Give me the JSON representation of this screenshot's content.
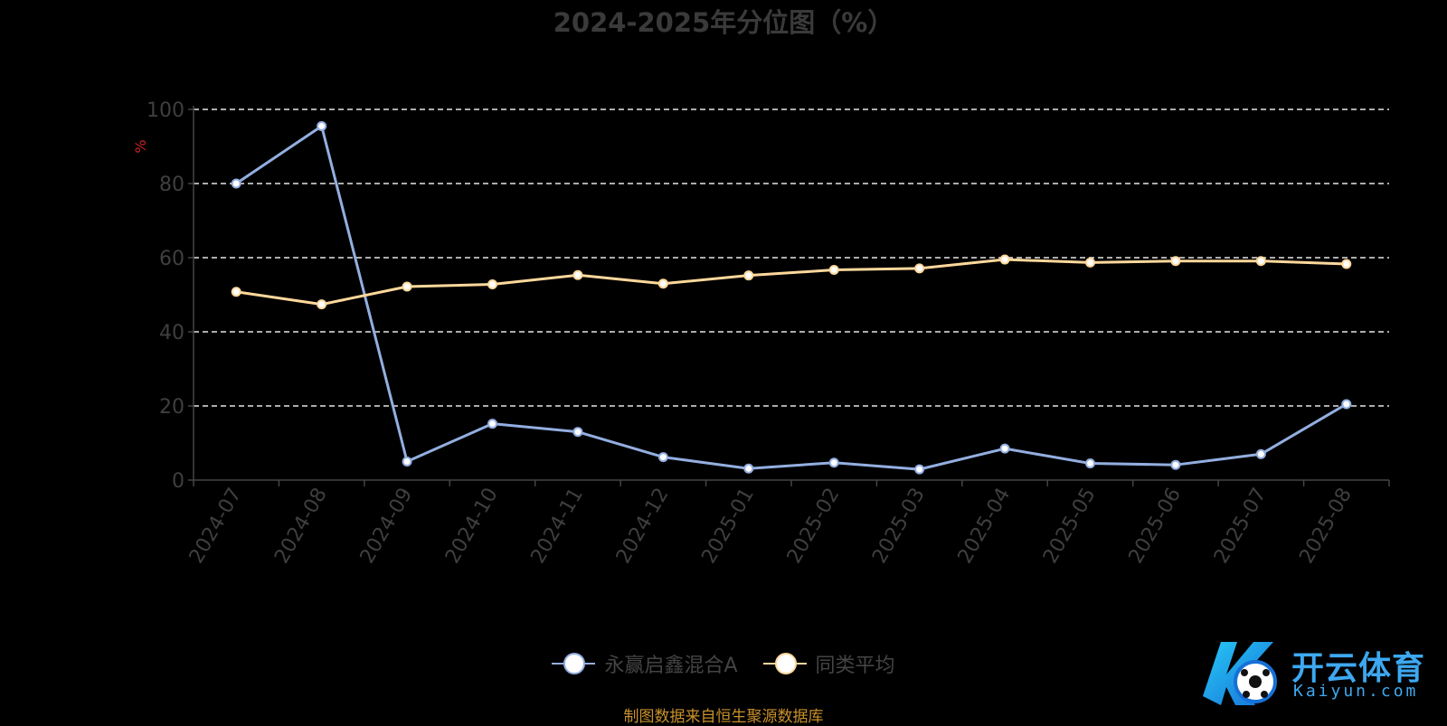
{
  "page": {
    "source": "制图数据来自恒生聚源数据库"
  },
  "colors": {
    "fund": "#93aee0",
    "average": "#ffd89b",
    "unit": "#cc2222"
  },
  "logo": {
    "text": "开云体育",
    "sub": "Kaiyun.com"
  },
  "chart_data": {
    "type": "line",
    "title": "2024-2025年分位图（%）",
    "ylabel": "%",
    "ylim": [
      0,
      100
    ],
    "yticks": [
      0,
      20,
      40,
      60,
      80,
      100
    ],
    "grid": true,
    "legend_position": "bottom",
    "categories": [
      "2024-07",
      "2024-08",
      "2024-09",
      "2024-10",
      "2024-11",
      "2024-12",
      "2025-01",
      "2025-02",
      "2025-03",
      "2025-04",
      "2025-05",
      "2025-06",
      "2025-07",
      "2025-08"
    ],
    "series": [
      {
        "name": "永赢启鑫混合A",
        "values": [
          80,
          95.5,
          5,
          15.2,
          13,
          6.2,
          3.1,
          4.7,
          2.9,
          8.5,
          4.5,
          4.1,
          7,
          20.5
        ]
      },
      {
        "name": "同类平均",
        "values": [
          50.8,
          47.4,
          52.2,
          52.8,
          55.3,
          53,
          55.2,
          56.7,
          57.1,
          59.5,
          58.7,
          59.1,
          59.1,
          58.3
        ]
      }
    ]
  }
}
